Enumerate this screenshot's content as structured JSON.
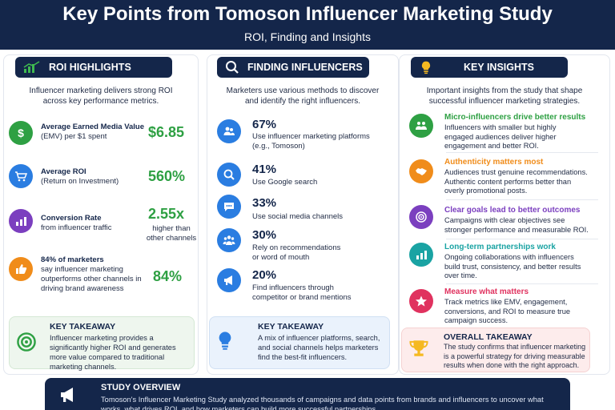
{
  "header": {
    "title": "Key Points from Tomoson Influencer Marketing Study",
    "subtitle": "ROI, Finding and Insights"
  },
  "roi": {
    "heading": "ROI HIGHLIGHTS",
    "intro": "Influencer marketing delivers strong ROI across key performance metrics.",
    "items": [
      {
        "label_l1": "Average Earned Media Value",
        "label_l2": "(EMV) per $1 spent",
        "value": "$6.85",
        "icon": "dollar-icon",
        "color": "#2ea043"
      },
      {
        "label_l1": "Average ROI",
        "label_l2": "(Return on Investment)",
        "value": "560%",
        "icon": "cart-icon",
        "color": "#2a7de1"
      },
      {
        "label_l1": "Conversion Rate",
        "label_l2": "from influencer traffic",
        "value": "2.55x",
        "note": "higher than other channels",
        "icon": "bar-chart-icon",
        "color": "#7b3fbf"
      },
      {
        "label_l1": "84% of marketers",
        "label_l2": "say influencer marketing outperforms other channels in driving brand awareness",
        "value": "84%",
        "icon": "thumbs-up-icon",
        "color": "#f08c1a"
      }
    ],
    "takeaway_title": "KEY TAKEAWAY",
    "takeaway_text": "Influencer marketing provides a significantly higher ROI and generates more value compared to traditional marketing channels."
  },
  "finding": {
    "heading": "FINDING INFLUENCERS",
    "intro": "Marketers use various methods to discover and identify the right influencers.",
    "items": [
      {
        "pct": "67%",
        "text": "Use influencer marketing platforms (e.g., Tomoson)",
        "icon": "users-icon"
      },
      {
        "pct": "41%",
        "text": "Use Google search",
        "icon": "search-icon"
      },
      {
        "pct": "33%",
        "text": "Use social media channels",
        "icon": "chat-bubble-icon"
      },
      {
        "pct": "30%",
        "text": "Rely on recommendations or word of mouth",
        "icon": "group-icon"
      },
      {
        "pct": "20%",
        "text": "Find influencers through competitor or brand mentions",
        "icon": "megaphone-icon"
      }
    ],
    "takeaway_title": "KEY TAKEAWAY",
    "takeaway_text": "A mix of influencer platforms, search, and social channels helps marketers find the best-fit influencers."
  },
  "insights": {
    "heading": "KEY INSIGHTS",
    "intro": "Important insights from the study that shape successful influencer marketing strategies.",
    "items": [
      {
        "title": "Micro-influencers drive better results",
        "text": "Influencers with smaller but highly engaged audiences deliver higher engagement and better ROI.",
        "icon": "people-icon",
        "color": "#2ea043"
      },
      {
        "title": "Authenticity matters most",
        "text": "Audiences trust genuine recommendations. Authentic content performs better than overly promotional posts.",
        "icon": "handshake-icon",
        "color": "#f08c1a"
      },
      {
        "title": "Clear goals lead to better outcomes",
        "text": "Campaigns with clear objectives see stronger performance and measurable ROI.",
        "icon": "target-icon",
        "color": "#7b3fbf"
      },
      {
        "title": "Long-term partnerships work",
        "text": "Ongoing collaborations with influencers build trust, consistency, and better results over time.",
        "icon": "chart-growth-icon",
        "color": "#1aa3a3"
      },
      {
        "title": "Measure what matters",
        "text": "Track metrics like EMV, engagement, conversions, and ROI to measure true campaign success.",
        "icon": "star-icon",
        "color": "#e0325f"
      }
    ],
    "takeaway_title": "OVERALL TAKEAWAY",
    "takeaway_text": "The study confirms that influencer marketing is a powerful strategy for driving measurable results when done with the right approach."
  },
  "overview": {
    "title": "STUDY OVERVIEW",
    "text": "Tomoson's Influencer Marketing Study analyzed thousands of campaigns and data points from brands and influencers to uncover what works, what drives ROI, and how marketers can build more successful partnerships."
  }
}
